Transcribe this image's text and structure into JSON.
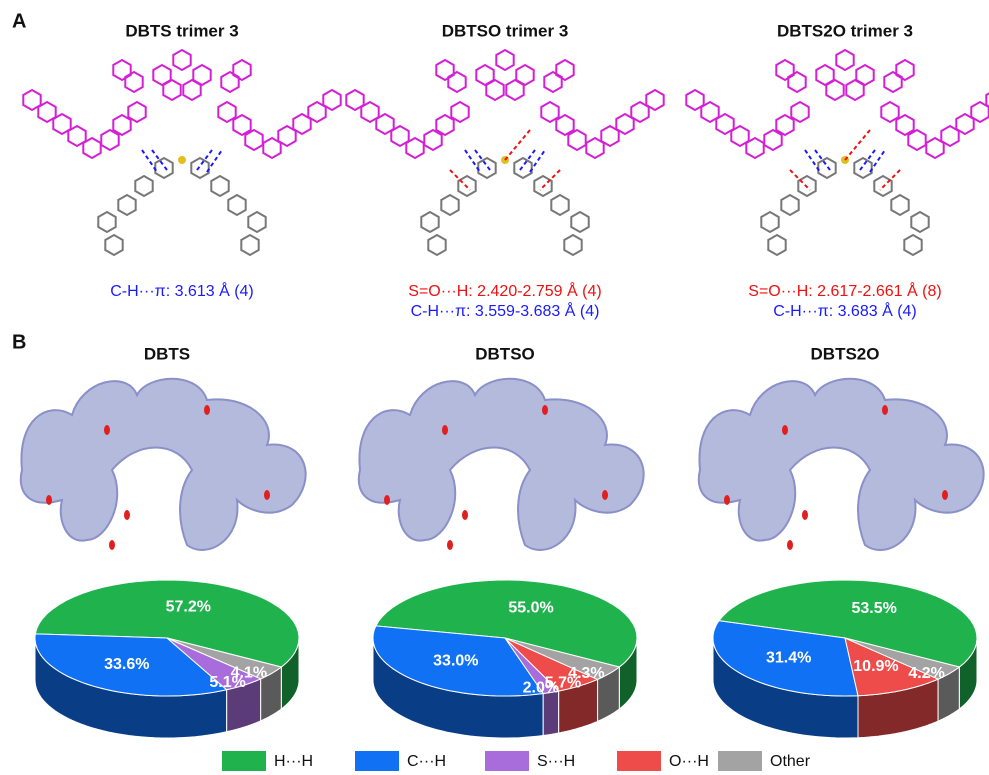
{
  "panel_a": {
    "label": "A",
    "molecules": [
      {
        "title": "DBTS trimer 3",
        "notes": [
          {
            "text": "C-H···π: 3.613 Å (4)",
            "color": "#1a1aff"
          }
        ]
      },
      {
        "title": "DBTSO trimer 3",
        "notes": [
          {
            "text": "S=O···H: 2.420-2.759 Å (4)",
            "color": "#f01010"
          },
          {
            "text": "C-H···π: 3.559-3.683 Å (4)",
            "color": "#1a1aff"
          }
        ]
      },
      {
        "title": "DBTS2O trimer 3",
        "notes": [
          {
            "text": "S=O···H: 2.617-2.661 Å (8)",
            "color": "#f01010"
          },
          {
            "text": "C-H···π: 3.683 Å (4)",
            "color": "#1a1aff"
          }
        ]
      }
    ]
  },
  "panel_b": {
    "label": "B"
  },
  "legend": [
    {
      "label": "H···H",
      "color": "#1fb24d"
    },
    {
      "label": "C···H",
      "color": "#1171f5"
    },
    {
      "label": "S···H",
      "color": "#a86ddb"
    },
    {
      "label": "O···H",
      "color": "#ee4b4b"
    },
    {
      "label": "Other",
      "color": "#a3a3a3"
    }
  ],
  "chart_data": [
    {
      "type": "pie",
      "title": "DBTS",
      "values": [
        57.2,
        33.6,
        5.1,
        null,
        4.1
      ],
      "value_labels": [
        "57.2%",
        "33.6%",
        "5.1%",
        null,
        "4.1%"
      ]
    },
    {
      "type": "pie",
      "title": "DBTSO",
      "values": [
        55.0,
        33.0,
        2.0,
        5.7,
        4.3
      ],
      "value_labels": [
        "55.0%",
        "33.0%",
        "2.0%",
        "5.7%",
        "4.3%"
      ]
    },
    {
      "type": "pie",
      "title": "DBTS2O",
      "values": [
        53.5,
        31.4,
        null,
        10.9,
        4.2
      ],
      "value_labels": [
        "53.5%",
        "31.4%",
        null,
        "10.9%",
        "4.2%"
      ]
    }
  ]
}
